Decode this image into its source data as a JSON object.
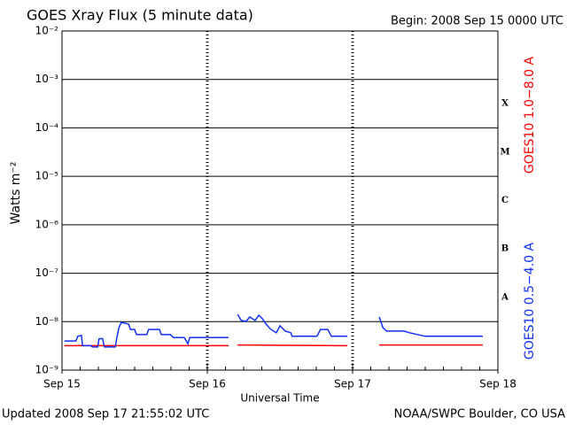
{
  "chart_data": {
    "type": "line",
    "title": "GOES Xray Flux (5 minute data)",
    "subtitle": "Begin:  2008 Sep 15 0000 UTC",
    "xlabel": "Universal Time",
    "ylabel": "Watts m⁻²",
    "footer_left": "Updated 2008 Sep 17 21:55:02 UTC",
    "footer_right": "NOAA/SWPC Boulder, CO USA",
    "log_y": true,
    "grid": true,
    "xlim": [
      0,
      72
    ],
    "xticks": [
      {
        "value": 0,
        "label": "Sep 15"
      },
      {
        "value": 24,
        "label": "Sep 16"
      },
      {
        "value": 48,
        "label": "Sep 17"
      },
      {
        "value": 72,
        "label": "Sep 18"
      }
    ],
    "ylim": [
      1e-09,
      0.01
    ],
    "yticks": [
      {
        "value": 1e-09,
        "label": "10⁻⁹"
      },
      {
        "value": 1e-08,
        "label": "10⁻⁸"
      },
      {
        "value": 1e-07,
        "label": "10⁻⁷"
      },
      {
        "value": 1e-06,
        "label": "10⁻⁶"
      },
      {
        "value": 1e-05,
        "label": "10⁻⁵"
      },
      {
        "value": 0.0001,
        "label": "10⁻⁴"
      },
      {
        "value": 0.001,
        "label": "10⁻³"
      },
      {
        "value": 0.01,
        "label": "10⁻²"
      }
    ],
    "flare_classes": [
      "A",
      "B",
      "C",
      "M",
      "X"
    ],
    "series": [
      {
        "name": "GOES10 1.0−8.0 A",
        "color": "#ff0000",
        "x": [
          0.4,
          27.5,
          28.2,
          29.0,
          47.1,
          49.5,
          52.4,
          69.5
        ],
        "values": [
          3.2e-09,
          3.2e-09,
          null,
          3.3e-09,
          3.2e-09,
          null,
          3.3e-09,
          3.3e-09
        ]
      },
      {
        "name": "GOES10 0.5−4.0 A",
        "color": "#1030ff",
        "x": [
          0.4,
          2.3,
          2.6,
          3.2,
          3.4,
          4.8,
          5.0,
          5.9,
          6.1,
          6.7,
          7.0,
          8.8,
          9.1,
          9.4,
          9.8,
          11.0,
          11.3,
          12.0,
          12.3,
          14.0,
          14.3,
          16.1,
          16.4,
          17.9,
          18.4,
          20.2,
          20.8,
          21.1,
          27.5,
          28.2,
          29.0,
          29.6,
          30.4,
          31.0,
          31.9,
          32.5,
          33.1,
          33.7,
          34.5,
          35.4,
          36.0,
          36.9,
          37.8,
          38.0,
          42.1,
          42.7,
          43.9,
          44.5,
          47.1,
          49.5,
          52.4,
          53.0,
          53.6,
          56.5,
          57.4,
          60.0,
          69.5
        ],
        "values": [
          4e-09,
          4e-09,
          5e-09,
          5.2e-09,
          3.2e-09,
          3.2e-09,
          3e-09,
          3e-09,
          4.4e-09,
          4.5e-09,
          3e-09,
          3e-09,
          5e-09,
          7.5e-09,
          9.7e-09,
          8.9e-09,
          6.9e-09,
          6.9e-09,
          5.4e-09,
          5.4e-09,
          6.9e-09,
          6.9e-09,
          5.4e-09,
          5.4e-09,
          4.7e-09,
          4.7e-09,
          3.5e-09,
          4.7e-09,
          4.7e-09,
          null,
          1.42e-08,
          1.06e-08,
          1.01e-08,
          1.25e-08,
          1.06e-08,
          1.36e-08,
          1.15e-08,
          8.9e-09,
          6.9e-09,
          5.9e-09,
          8.2e-09,
          6.4e-09,
          5.9e-09,
          5e-09,
          5e-09,
          6.9e-09,
          6.9e-09,
          5e-09,
          5e-09,
          null,
          1.25e-08,
          7.5e-09,
          6.4e-09,
          6.4e-09,
          5.9e-09,
          5e-09,
          5e-09
        ]
      }
    ]
  }
}
